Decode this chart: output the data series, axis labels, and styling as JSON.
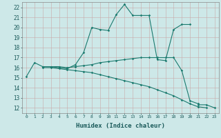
{
  "xlabel": "Humidex (Indice chaleur)",
  "ylabel": "",
  "xlim": [
    -0.5,
    23.5
  ],
  "ylim": [
    11.5,
    22.5
  ],
  "xticks": [
    0,
    1,
    2,
    3,
    4,
    5,
    6,
    7,
    8,
    9,
    10,
    11,
    12,
    13,
    14,
    15,
    16,
    17,
    18,
    19,
    20,
    21,
    22,
    23
  ],
  "yticks": [
    12,
    13,
    14,
    15,
    16,
    17,
    18,
    19,
    20,
    21,
    22
  ],
  "background_color": "#cde8e8",
  "line_color": "#1a7a6e",
  "grid_color": "#b8d8d8",
  "lines": [
    {
      "x": [
        0,
        1,
        2,
        3,
        4,
        5,
        6,
        7,
        8,
        9,
        10,
        11,
        12,
        13,
        14,
        15,
        16,
        17,
        18,
        19,
        20
      ],
      "y": [
        15.1,
        16.5,
        16.1,
        16.1,
        16.0,
        15.9,
        16.3,
        17.5,
        20.0,
        19.8,
        19.7,
        21.3,
        22.3,
        21.2,
        21.2,
        21.2,
        16.8,
        16.7,
        19.8,
        20.3,
        20.3
      ]
    },
    {
      "x": [
        2,
        3,
        4,
        5,
        6,
        7,
        8,
        9,
        10,
        11,
        12,
        13,
        14,
        15,
        16,
        17,
        18,
        19,
        20,
        21
      ],
      "y": [
        16.1,
        16.1,
        16.1,
        16.0,
        16.1,
        16.2,
        16.3,
        16.5,
        16.6,
        16.7,
        16.8,
        16.9,
        17.0,
        17.0,
        17.0,
        17.0,
        17.0,
        15.7,
        12.7,
        12.4
      ]
    },
    {
      "x": [
        2,
        3,
        4,
        5,
        6,
        7,
        8,
        9,
        10,
        11,
        12,
        13,
        14,
        15,
        16,
        17,
        18,
        19,
        20,
        21,
        22
      ],
      "y": [
        16.0,
        16.0,
        15.9,
        15.8,
        15.7,
        15.6,
        15.5,
        15.3,
        15.1,
        14.9,
        14.7,
        14.5,
        14.3,
        14.1,
        13.8,
        13.5,
        13.2,
        12.8,
        12.4,
        12.1,
        12.0
      ]
    },
    {
      "x": [
        21,
        22,
        23
      ],
      "y": [
        12.3,
        12.3,
        12.0
      ]
    }
  ]
}
